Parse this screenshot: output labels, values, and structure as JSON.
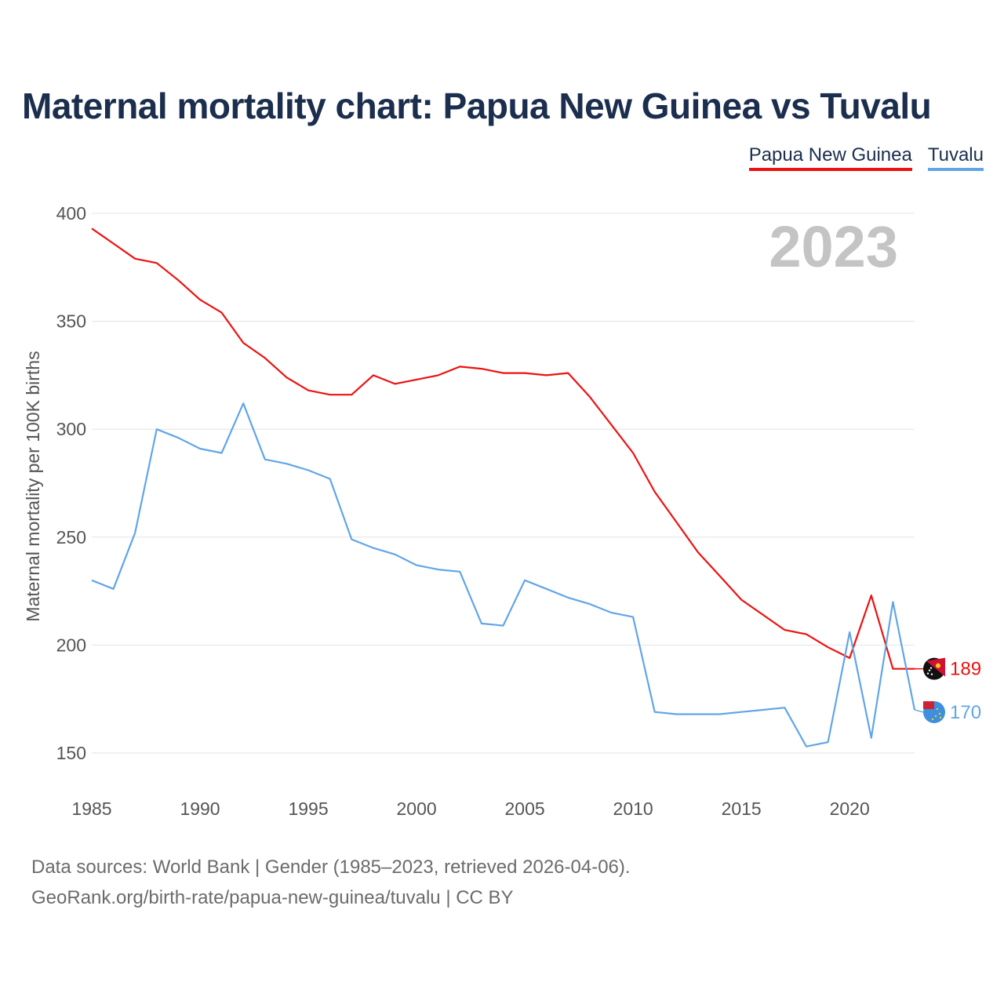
{
  "header": {
    "title": "Maternal mortality chart: Papua New Guinea vs Tuvalu"
  },
  "legend": [
    {
      "name": "Papua New Guinea",
      "color": "#ee1111"
    },
    {
      "name": "Tuvalu",
      "color": "#61a5e8"
    }
  ],
  "year_watermark": "2023",
  "footer": {
    "source_line": "Data sources: World Bank | Gender (1985–2023, retrieved 2026-04-06).",
    "link_line": "GeoRank.org/birth-rate/papua-new-guinea/tuvalu | CC BY"
  },
  "chart_data": {
    "type": "line",
    "title": "Maternal mortality chart: Papua New Guinea vs Tuvalu",
    "xlabel": "",
    "ylabel": "Maternal mortality per 100K births",
    "xlim": [
      1985,
      2023
    ],
    "ylim": [
      140,
      400
    ],
    "x_ticks": [
      1985,
      1990,
      1995,
      2000,
      2005,
      2010,
      2015,
      2020
    ],
    "y_ticks": [
      150,
      200,
      250,
      300,
      350,
      400
    ],
    "grid": true,
    "legend_position": "top-right",
    "x": [
      1985,
      1986,
      1987,
      1988,
      1989,
      1990,
      1991,
      1992,
      1993,
      1994,
      1995,
      1996,
      1997,
      1998,
      1999,
      2000,
      2001,
      2002,
      2003,
      2004,
      2005,
      2006,
      2007,
      2008,
      2009,
      2010,
      2011,
      2012,
      2013,
      2014,
      2015,
      2016,
      2017,
      2018,
      2019,
      2020,
      2021,
      2022,
      2023
    ],
    "series": [
      {
        "name": "Papua New Guinea",
        "color": "#ee1111",
        "end_label": "189",
        "values": [
          393,
          386,
          379,
          377,
          369,
          360,
          354,
          340,
          333,
          324,
          318,
          316,
          316,
          325,
          321,
          323,
          325,
          329,
          328,
          326,
          326,
          325,
          326,
          315,
          302,
          289,
          271,
          257,
          243,
          232,
          221,
          214,
          207,
          205,
          199,
          194,
          223,
          189,
          189
        ]
      },
      {
        "name": "Tuvalu",
        "color": "#61a5e8",
        "end_label": "170",
        "values": [
          230,
          226,
          252,
          300,
          296,
          291,
          289,
          312,
          286,
          284,
          281,
          277,
          249,
          245,
          242,
          237,
          235,
          234,
          210,
          209,
          230,
          226,
          222,
          219,
          215,
          213,
          169,
          168,
          168,
          168,
          169,
          170,
          171,
          153,
          155,
          206,
          157,
          220,
          170
        ]
      }
    ]
  }
}
